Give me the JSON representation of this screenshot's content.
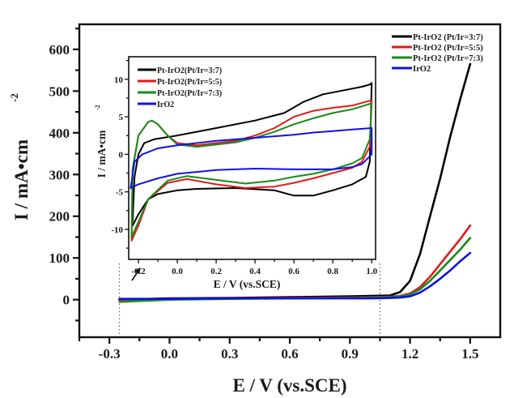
{
  "chart_data": {
    "type": "line",
    "main": {
      "title": "",
      "xlabel": "E / V (vs.SCE)",
      "ylabel": "I / mA•cm",
      "ylabel_superscript": "-2",
      "xlim": [
        -0.45,
        1.65
      ],
      "ylim": [
        -90,
        660
      ],
      "xticks": [
        -0.3,
        0.0,
        0.3,
        0.6,
        0.9,
        1.2,
        1.5
      ],
      "xtick_labels": [
        "-0.3",
        "0.0",
        "0.3",
        "0.6",
        "0.9",
        "1.2",
        "1.5"
      ],
      "yticks": [
        0,
        100,
        200,
        300,
        400,
        500,
        600
      ],
      "ytick_labels": [
        "0",
        "100",
        "200",
        "300",
        "400",
        "500",
        "600"
      ],
      "grid": false,
      "legend_position": "top-right",
      "zoom_window_markers": [
        -0.25,
        1.05
      ],
      "series": [
        {
          "name": "Pt-IrO2 (Pt/Ir=3:7)",
          "color": "#000000",
          "x": [
            -0.25,
            0.0,
            0.3,
            0.6,
            0.9,
            1.0,
            1.1,
            1.15,
            1.2,
            1.25,
            1.3,
            1.35,
            1.4,
            1.45,
            1.5
          ],
          "y": [
            0,
            3,
            4,
            6,
            8,
            9,
            10,
            18,
            45,
            110,
            200,
            290,
            390,
            480,
            565
          ]
        },
        {
          "name": "Pt-IrO2 (Pt/Ir=5:5)",
          "color": "#e01b1b",
          "x": [
            -0.25,
            0.0,
            0.3,
            0.6,
            0.9,
            1.0,
            1.1,
            1.15,
            1.2,
            1.25,
            1.3,
            1.35,
            1.4,
            1.45,
            1.5
          ],
          "y": [
            0,
            2,
            3,
            4,
            5,
            6,
            7,
            9,
            15,
            30,
            55,
            85,
            115,
            145,
            178
          ]
        },
        {
          "name": "Pt-IrO2 (Pt/Ir=7:3)",
          "color": "#1a8a1a",
          "x": [
            -0.25,
            0.0,
            0.3,
            0.6,
            0.9,
            1.0,
            1.1,
            1.15,
            1.2,
            1.25,
            1.3,
            1.35,
            1.4,
            1.45,
            1.5
          ],
          "y": [
            -5,
            0,
            2,
            3,
            4,
            5,
            6,
            8,
            13,
            25,
            45,
            70,
            95,
            120,
            148
          ]
        },
        {
          "name": "IrO2",
          "color": "#1010e6",
          "x": [
            -0.25,
            0.0,
            0.3,
            0.6,
            0.9,
            1.0,
            1.1,
            1.15,
            1.2,
            1.25,
            1.3,
            1.35,
            1.4,
            1.45,
            1.5
          ],
          "y": [
            2,
            2,
            3,
            3,
            3,
            3,
            4,
            5,
            8,
            17,
            32,
            50,
            70,
            92,
            112
          ]
        }
      ]
    },
    "inset": {
      "title": "",
      "xlabel": "E / V (vs.SCE)",
      "ylabel": "I / mA•cm",
      "ylabel_superscript": "-2",
      "xlim": [
        -0.25,
        1.02
      ],
      "ylim": [
        -14,
        13
      ],
      "xticks": [
        -0.2,
        0.0,
        0.2,
        0.4,
        0.6,
        0.8,
        1.0
      ],
      "xtick_labels": [
        "-0.2",
        "0.0",
        "0.2",
        "0.4",
        "0.6",
        "0.8",
        "1.0"
      ],
      "yticks": [
        -10,
        -5,
        0,
        5,
        10
      ],
      "ytick_labels": [
        "-10",
        "-5",
        "0",
        "5",
        "10"
      ],
      "grid": false,
      "legend_position": "top-left",
      "series": [
        {
          "name": "Pt-IrO2(Pt/Ir=3:7)",
          "color": "#000000",
          "x": [
            -0.23,
            -0.22,
            -0.2,
            -0.17,
            -0.12,
            0.0,
            0.2,
            0.4,
            0.55,
            0.65,
            0.75,
            0.85,
            0.95,
            0.99,
            1.0,
            0.99,
            0.97,
            0.9,
            0.8,
            0.7,
            0.6,
            0.5,
            0.3,
            0.1,
            0.0,
            -0.1,
            -0.15,
            -0.2,
            -0.23
          ],
          "y": [
            -9,
            -3,
            0,
            1.5,
            2,
            2.5,
            3.5,
            4.5,
            5.5,
            7,
            8,
            8.5,
            9,
            9.3,
            9.5,
            -1,
            -3,
            -4,
            -4.8,
            -5.5,
            -5.5,
            -4.8,
            -4.5,
            -4.6,
            -4.8,
            -5.3,
            -6,
            -8,
            -9.5
          ]
        },
        {
          "name": "Pt-IrO2(Pt/Ir=5:5)",
          "color": "#e01b1b",
          "x": [
            -0.235,
            -0.23,
            -0.2,
            -0.15,
            -0.13,
            -0.1,
            -0.05,
            0.0,
            0.1,
            0.3,
            0.4,
            0.5,
            0.6,
            0.7,
            0.8,
            0.9,
            1.0,
            0.99,
            0.95,
            0.9,
            0.8,
            0.7,
            0.6,
            0.5,
            0.35,
            0.2,
            0.05,
            -0.05,
            -0.15,
            -0.2,
            -0.235
          ],
          "y": [
            -11.5,
            -2,
            2.5,
            4.3,
            4.5,
            4,
            2.5,
            1.5,
            1.2,
            1.8,
            2.5,
            3.5,
            5,
            5.8,
            6.2,
            6.5,
            7.2,
            1,
            -1,
            -1.8,
            -2.5,
            -3.2,
            -3.8,
            -4.3,
            -4.5,
            -4,
            -3.3,
            -3.8,
            -6,
            -9.5,
            -11.5
          ]
        },
        {
          "name": "Pt-IrO2(Pt/Ir=7:3)",
          "color": "#1a8a1a",
          "x": [
            -0.235,
            -0.23,
            -0.2,
            -0.15,
            -0.13,
            -0.1,
            -0.05,
            0.0,
            0.1,
            0.3,
            0.4,
            0.5,
            0.6,
            0.7,
            0.8,
            0.9,
            1.0,
            0.99,
            0.95,
            0.9,
            0.8,
            0.7,
            0.6,
            0.5,
            0.35,
            0.2,
            0.05,
            -0.05,
            -0.15,
            -0.2,
            -0.235
          ],
          "y": [
            -11,
            -2,
            2.5,
            4.3,
            4.5,
            4,
            2.5,
            1.3,
            1.0,
            1.6,
            2.2,
            3.0,
            4.0,
            4.8,
            5.5,
            6.0,
            6.8,
            2,
            -0.5,
            -1.2,
            -2.0,
            -2.6,
            -3.0,
            -3.5,
            -3.9,
            -3.4,
            -2.9,
            -3.5,
            -6,
            -9,
            -11
          ]
        },
        {
          "name": "IrO2",
          "color": "#1010e6",
          "x": [
            -0.24,
            -0.22,
            -0.18,
            -0.1,
            0.0,
            0.2,
            0.4,
            0.6,
            0.7,
            0.8,
            0.9,
            1.0,
            1.0,
            0.95,
            0.9,
            0.8,
            0.6,
            0.4,
            0.2,
            0.0,
            -0.1,
            -0.2,
            -0.24
          ],
          "y": [
            -4.5,
            -1,
            0,
            0.8,
            1.2,
            1.8,
            2.2,
            2.6,
            2.9,
            3.1,
            3.3,
            3.5,
            0,
            -1.3,
            -1.7,
            -2.0,
            -2.0,
            -1.9,
            -2.1,
            -2.6,
            -3.2,
            -4.0,
            -4.5
          ]
        }
      ]
    }
  }
}
